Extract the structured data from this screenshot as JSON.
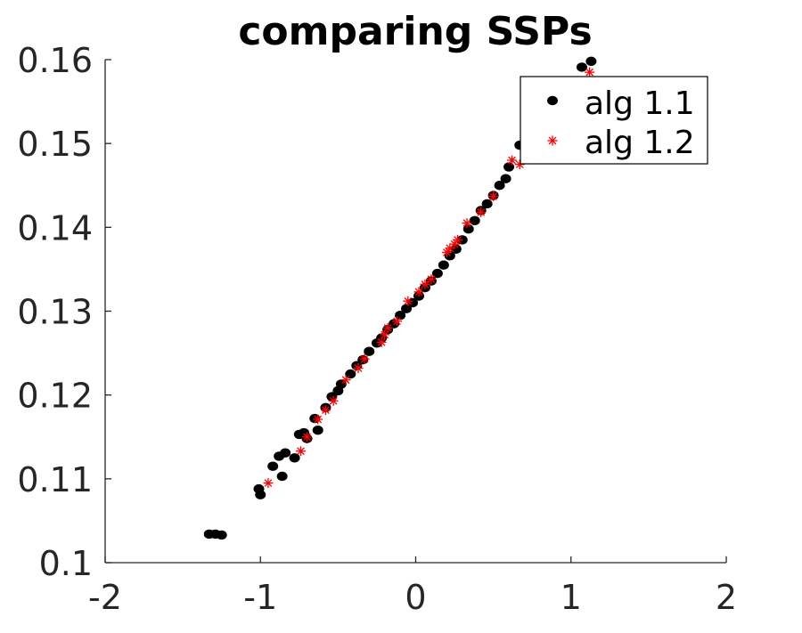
{
  "chart_data": {
    "type": "scatter",
    "title": "comparing SSPs",
    "xlabel": "",
    "ylabel": "",
    "xlim": [
      -2,
      2
    ],
    "ylim": [
      0.1,
      0.16
    ],
    "xticks": [
      -2,
      -1,
      0,
      1,
      2
    ],
    "xtick_labels": [
      "-2",
      "-1",
      "0",
      "1",
      "2"
    ],
    "yticks": [
      0.1,
      0.11,
      0.12,
      0.13,
      0.14,
      0.15,
      0.16
    ],
    "ytick_labels": [
      "0.1",
      "0.11",
      "0.12",
      "0.13",
      "0.14",
      "0.15",
      "0.16"
    ],
    "grid": false,
    "legend_position": "top-right",
    "series": [
      {
        "name": "alg 1.1",
        "marker": "filled-circle",
        "color": "#000000",
        "points": [
          [
            -1.33,
            0.1034
          ],
          [
            -1.29,
            0.1034
          ],
          [
            -1.25,
            0.1033
          ],
          [
            -1.01,
            0.1088
          ],
          [
            -1.0,
            0.1081
          ],
          [
            -0.92,
            0.1115
          ],
          [
            -0.88,
            0.1127
          ],
          [
            -0.86,
            0.1103
          ],
          [
            -0.84,
            0.1131
          ],
          [
            -0.78,
            0.1125
          ],
          [
            -0.75,
            0.1153
          ],
          [
            -0.72,
            0.1155
          ],
          [
            -0.7,
            0.1148
          ],
          [
            -0.65,
            0.1172
          ],
          [
            -0.63,
            0.1158
          ],
          [
            -0.58,
            0.1185
          ],
          [
            -0.54,
            0.1198
          ],
          [
            -0.5,
            0.1205
          ],
          [
            -0.48,
            0.1213
          ],
          [
            -0.42,
            0.1225
          ],
          [
            -0.38,
            0.1235
          ],
          [
            -0.34,
            0.1242
          ],
          [
            -0.3,
            0.1252
          ],
          [
            -0.25,
            0.1262
          ],
          [
            -0.22,
            0.1268
          ],
          [
            -0.18,
            0.1278
          ],
          [
            -0.14,
            0.1285
          ],
          [
            -0.1,
            0.1295
          ],
          [
            -0.06,
            0.1303
          ],
          [
            -0.02,
            0.131
          ],
          [
            0.02,
            0.1318
          ],
          [
            0.06,
            0.1328
          ],
          [
            0.1,
            0.1336
          ],
          [
            0.14,
            0.1345
          ],
          [
            0.18,
            0.1355
          ],
          [
            0.22,
            0.1366
          ],
          [
            0.26,
            0.1374
          ],
          [
            0.3,
            0.1385
          ],
          [
            0.34,
            0.1398
          ],
          [
            0.38,
            0.1408
          ],
          [
            0.42,
            0.142
          ],
          [
            0.46,
            0.1428
          ],
          [
            0.5,
            0.1438
          ],
          [
            0.54,
            0.145
          ],
          [
            0.58,
            0.1458
          ],
          [
            0.6,
            0.1472
          ],
          [
            0.67,
            0.1498
          ],
          [
            1.07,
            0.1591
          ],
          [
            1.13,
            0.1598
          ]
        ]
      },
      {
        "name": "alg 1.2",
        "marker": "asterisk",
        "color": "#ff0000",
        "points": [
          [
            -0.95,
            0.1095
          ],
          [
            -0.74,
            0.1133
          ],
          [
            -0.7,
            0.115
          ],
          [
            -0.63,
            0.1171
          ],
          [
            -0.58,
            0.1182
          ],
          [
            -0.53,
            0.1193
          ],
          [
            -0.45,
            0.1218
          ],
          [
            -0.37,
            0.1232
          ],
          [
            -0.33,
            0.1243
          ],
          [
            -0.22,
            0.1263
          ],
          [
            -0.2,
            0.1272
          ],
          [
            -0.18,
            0.128
          ],
          [
            -0.12,
            0.1288
          ],
          [
            -0.05,
            0.1312
          ],
          [
            0.02,
            0.1323
          ],
          [
            0.06,
            0.1332
          ],
          [
            0.1,
            0.1338
          ],
          [
            0.2,
            0.137
          ],
          [
            0.22,
            0.1375
          ],
          [
            0.25,
            0.138
          ],
          [
            0.27,
            0.1385
          ],
          [
            0.33,
            0.1405
          ],
          [
            0.42,
            0.1418
          ],
          [
            0.5,
            0.1437
          ],
          [
            0.62,
            0.148
          ],
          [
            0.67,
            0.1475
          ],
          [
            1.12,
            0.1585
          ]
        ]
      }
    ]
  }
}
